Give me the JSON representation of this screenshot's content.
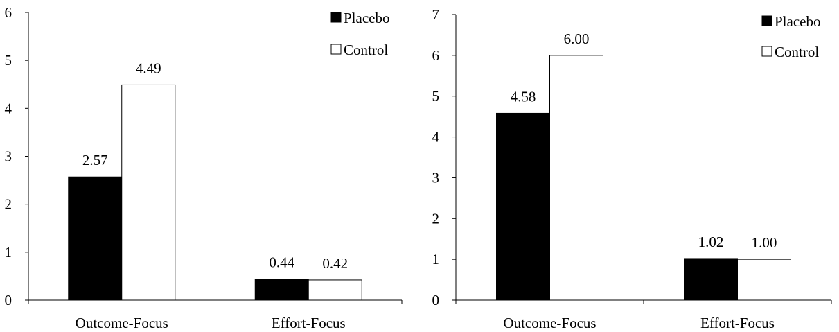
{
  "chart_data": [
    {
      "type": "bar",
      "categories": [
        "Outcome-Focus",
        "Effort-Focus"
      ],
      "series": [
        {
          "name": "Placebo",
          "values": [
            2.57,
            0.44
          ],
          "labels": [
            "2.57",
            "0.44"
          ]
        },
        {
          "name": "Control",
          "values": [
            4.49,
            0.42
          ],
          "labels": [
            "4.49",
            "0.42"
          ]
        }
      ],
      "ylim": [
        0,
        6
      ],
      "yticks": [
        "0",
        "1",
        "2",
        "3",
        "4",
        "5",
        "6"
      ],
      "legend": "top-right",
      "grid": false
    },
    {
      "type": "bar",
      "categories": [
        "Outcome-Focus",
        "Effort-Focus"
      ],
      "series": [
        {
          "name": "Placebo",
          "values": [
            4.58,
            1.02
          ],
          "labels": [
            "4.58",
            "1.02"
          ]
        },
        {
          "name": "Control",
          "values": [
            6.0,
            1.0
          ],
          "labels": [
            "6.00",
            "1.00"
          ]
        }
      ],
      "ylim": [
        0,
        7
      ],
      "yticks": [
        "0",
        "1",
        "2",
        "3",
        "4",
        "5",
        "6",
        "7"
      ],
      "legend": "top-right",
      "grid": false
    }
  ],
  "colors": {
    "placebo_fill": "#000000",
    "control_fill": "#ffffff",
    "axis": "#000000"
  }
}
